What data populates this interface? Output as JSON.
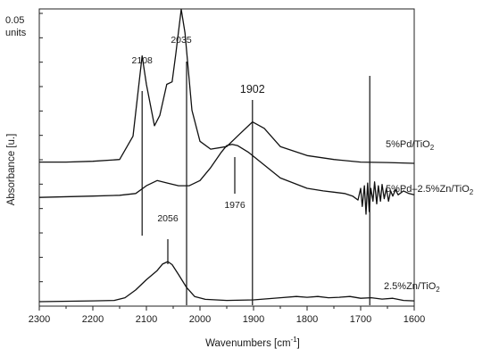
{
  "chart_data": {
    "type": "line",
    "title": "",
    "xlabel": "Wavenumbers [cm",
    "xlabel_sup": "-1",
    "xlabel_end": "]",
    "ylabel": "Absorbance [u.]",
    "scale_bar": {
      "value": "0.05",
      "unit": "units"
    },
    "x_reversed": true,
    "xlim": [
      2300,
      1600
    ],
    "xticks": [
      "2300",
      "2200",
      "2100",
      "2000",
      "1900",
      "1800",
      "1700",
      "1600"
    ],
    "y_ticks_unlabeled": 12,
    "series": [
      {
        "label_main": "5%Pd/TiO",
        "label_sub": "2",
        "points": [
          [
            2300,
            0.32
          ],
          [
            2250,
            0.32
          ],
          [
            2200,
            0.323
          ],
          [
            2150,
            0.33
          ],
          [
            2125,
            0.42
          ],
          [
            2108,
            0.73
          ],
          [
            2100,
            0.62
          ],
          [
            2085,
            0.46
          ],
          [
            2075,
            0.5
          ],
          [
            2062,
            0.62
          ],
          [
            2052,
            0.63
          ],
          [
            2045,
            0.74
          ],
          [
            2035,
            0.91
          ],
          [
            2028,
            0.82
          ],
          [
            2015,
            0.52
          ],
          [
            2000,
            0.4
          ],
          [
            1980,
            0.37
          ],
          [
            1950,
            0.38
          ],
          [
            1925,
            0.43
          ],
          [
            1902,
            0.475
          ],
          [
            1880,
            0.45
          ],
          [
            1850,
            0.38
          ],
          [
            1800,
            0.345
          ],
          [
            1750,
            0.33
          ],
          [
            1700,
            0.32
          ],
          [
            1650,
            0.318
          ],
          [
            1600,
            0.315
          ]
        ]
      },
      {
        "label_main": "5%Pd–2.5%Zn/TiO",
        "label_sub": "2",
        "points": [
          [
            2300,
            0.155
          ],
          [
            2200,
            0.16
          ],
          [
            2150,
            0.163
          ],
          [
            2120,
            0.17
          ],
          [
            2100,
            0.2
          ],
          [
            2080,
            0.22
          ],
          [
            2060,
            0.21
          ],
          [
            2040,
            0.2
          ],
          [
            2020,
            0.2
          ],
          [
            2000,
            0.22
          ],
          [
            1980,
            0.27
          ],
          [
            1960,
            0.33
          ],
          [
            1950,
            0.355
          ],
          [
            1940,
            0.36
          ],
          [
            1930,
            0.355
          ],
          [
            1910,
            0.33
          ],
          [
            1880,
            0.28
          ],
          [
            1850,
            0.23
          ],
          [
            1800,
            0.19
          ],
          [
            1770,
            0.18
          ],
          [
            1750,
            0.175
          ],
          [
            1730,
            0.17
          ],
          [
            1715,
            0.16
          ],
          [
            1705,
            0.145
          ],
          [
            1700,
            0.19
          ],
          [
            1697,
            0.12
          ],
          [
            1693,
            0.2
          ],
          [
            1690,
            0.09
          ],
          [
            1687,
            0.21
          ],
          [
            1684,
            0.1
          ],
          [
            1681,
            0.19
          ],
          [
            1677,
            0.14
          ],
          [
            1674,
            0.215
          ],
          [
            1670,
            0.13
          ],
          [
            1667,
            0.2
          ],
          [
            1663,
            0.14
          ],
          [
            1660,
            0.205
          ],
          [
            1656,
            0.15
          ],
          [
            1652,
            0.19
          ],
          [
            1648,
            0.14
          ],
          [
            1644,
            0.18
          ],
          [
            1640,
            0.16
          ],
          [
            1635,
            0.185
          ],
          [
            1630,
            0.165
          ],
          [
            1620,
            0.18
          ],
          [
            1610,
            0.17
          ],
          [
            1600,
            0.165
          ]
        ]
      },
      {
        "label_main": "2.5%Zn/TiO",
        "label_sub": "2",
        "points": [
          [
            2300,
            0.005
          ],
          [
            2200,
            0.008
          ],
          [
            2160,
            0.01
          ],
          [
            2140,
            0.02
          ],
          [
            2120,
            0.05
          ],
          [
            2100,
            0.09
          ],
          [
            2080,
            0.125
          ],
          [
            2070,
            0.15
          ],
          [
            2060,
            0.16
          ],
          [
            2052,
            0.148
          ],
          [
            2040,
            0.11
          ],
          [
            2025,
            0.06
          ],
          [
            2010,
            0.025
          ],
          [
            1990,
            0.014
          ],
          [
            1950,
            0.01
          ],
          [
            1900,
            0.012
          ],
          [
            1850,
            0.02
          ],
          [
            1820,
            0.025
          ],
          [
            1800,
            0.022
          ],
          [
            1780,
            0.025
          ],
          [
            1760,
            0.02
          ],
          [
            1740,
            0.022
          ],
          [
            1720,
            0.025
          ],
          [
            1700,
            0.018
          ],
          [
            1680,
            0.02
          ],
          [
            1660,
            0.015
          ],
          [
            1640,
            0.018
          ],
          [
            1620,
            0.01
          ],
          [
            1600,
            0.008
          ]
        ]
      }
    ],
    "annotations": [
      {
        "text": "2108",
        "x": 2108
      },
      {
        "text": "2035",
        "x": 2035
      },
      {
        "text": "1902",
        "x": 1902
      },
      {
        "text": "1976",
        "x": 1935
      },
      {
        "text": "2056",
        "x": 2060
      }
    ],
    "vertical_lines": [
      2108,
      2025,
      1902,
      1683
    ]
  }
}
